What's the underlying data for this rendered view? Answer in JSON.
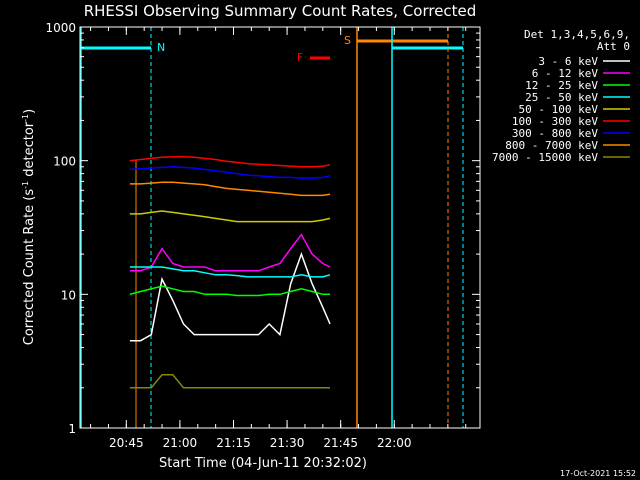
{
  "chart_data": {
    "type": "line",
    "title": "RHESSI Observing Summary Count Rates, Corrected",
    "xlabel": "Start Time (04-Jun-11 20:32:02)",
    "ylabel": "Corrected Count Rate (s",
    "ylabel_sup1": "-1",
    "ylabel_mid": " detector",
    "ylabel_sup2": "-1",
    "ylabel_end": ")",
    "yscale": "log",
    "ylim": [
      1,
      1000
    ],
    "xlim": [
      "20:32:02",
      "22:24"
    ],
    "x_ticks": [
      "20:45",
      "21:00",
      "21:15",
      "21:30",
      "21:45",
      "22:00"
    ],
    "y_ticks": [
      "1",
      "10",
      "100",
      "1000"
    ],
    "legend_header": [
      "Det 1,3,4,5,6,9,",
      "Att 0"
    ],
    "series": [
      {
        "name": "3 - 6 keV",
        "color": "#ffffff",
        "x": [
          "20:46",
          "20:49",
          "20:52",
          "20:55",
          "20:58",
          "21:01",
          "21:04",
          "21:07",
          "21:10",
          "21:13",
          "21:16",
          "21:19",
          "21:22",
          "21:25",
          "21:28",
          "21:31",
          "21:34",
          "21:37",
          "21:40",
          "21:42"
        ],
        "values": [
          4.5,
          4.5,
          5,
          13,
          9,
          6,
          5,
          5,
          5,
          5,
          5,
          5,
          5,
          6,
          5,
          12,
          20,
          12,
          8,
          6
        ]
      },
      {
        "name": "6 - 12 keV",
        "color": "#ff00ff",
        "x": [
          "20:46",
          "20:49",
          "20:52",
          "20:55",
          "20:58",
          "21:01",
          "21:04",
          "21:07",
          "21:10",
          "21:13",
          "21:16",
          "21:19",
          "21:22",
          "21:25",
          "21:28",
          "21:31",
          "21:34",
          "21:37",
          "21:40",
          "21:42"
        ],
        "values": [
          15,
          15,
          16,
          22,
          17,
          16,
          16,
          16,
          15,
          15,
          15,
          15,
          15,
          16,
          17,
          22,
          28,
          20,
          17,
          16
        ]
      },
      {
        "name": "12 - 25 keV",
        "color": "#00ff00",
        "x": [
          "20:46",
          "20:49",
          "20:52",
          "20:55",
          "20:58",
          "21:01",
          "21:04",
          "21:07",
          "21:10",
          "21:13",
          "21:16",
          "21:19",
          "21:22",
          "21:25",
          "21:28",
          "21:31",
          "21:34",
          "21:37",
          "21:40",
          "21:42"
        ],
        "values": [
          10,
          10.5,
          11,
          11.5,
          11,
          10.5,
          10.5,
          10,
          10,
          10,
          9.8,
          9.8,
          9.8,
          10,
          10,
          10.5,
          11,
          10.5,
          10,
          10
        ]
      },
      {
        "name": "25 - 50 keV",
        "color": "#00ffff",
        "x": [
          "20:46",
          "20:49",
          "20:52",
          "20:55",
          "20:58",
          "21:01",
          "21:04",
          "21:07",
          "21:10",
          "21:13",
          "21:16",
          "21:19",
          "21:22",
          "21:25",
          "21:28",
          "21:31",
          "21:34",
          "21:37",
          "21:40",
          "21:42"
        ],
        "values": [
          16,
          16,
          16,
          16,
          15.5,
          15,
          15,
          14.5,
          14,
          14,
          13.8,
          13.5,
          13.5,
          13.5,
          13.5,
          13.5,
          14,
          13.5,
          13.5,
          14
        ]
      },
      {
        "name": "50 - 100 keV",
        "color": "#cccc00",
        "x": [
          "20:46",
          "20:49",
          "20:52",
          "20:55",
          "20:58",
          "21:01",
          "21:04",
          "21:07",
          "21:10",
          "21:13",
          "21:16",
          "21:19",
          "21:22",
          "21:25",
          "21:28",
          "21:31",
          "21:34",
          "21:37",
          "21:40",
          "21:42"
        ],
        "values": [
          40,
          40,
          41,
          42,
          41,
          40,
          39,
          38,
          37,
          36,
          35,
          35,
          35,
          35,
          35,
          35,
          35,
          35,
          36,
          37
        ]
      },
      {
        "name": "100 - 300 keV",
        "color": "#ff0000",
        "x": [
          "20:46",
          "20:49",
          "20:52",
          "20:55",
          "20:58",
          "21:01",
          "21:04",
          "21:07",
          "21:10",
          "21:13",
          "21:16",
          "21:19",
          "21:22",
          "21:25",
          "21:28",
          "21:31",
          "21:34",
          "21:37",
          "21:40",
          "21:42"
        ],
        "values": [
          100,
          102,
          104,
          106,
          107,
          107,
          106,
          104,
          102,
          99,
          97,
          95,
          94,
          93,
          92,
          91,
          90,
          90,
          91,
          93
        ]
      },
      {
        "name": "300 - 800 keV",
        "color": "#0000ff",
        "x": [
          "20:46",
          "20:49",
          "20:52",
          "20:55",
          "20:58",
          "21:01",
          "21:04",
          "21:07",
          "21:10",
          "21:13",
          "21:16",
          "21:19",
          "21:22",
          "21:25",
          "21:28",
          "21:31",
          "21:34",
          "21:37",
          "21:40",
          "21:42"
        ],
        "values": [
          86,
          87,
          88,
          89,
          90,
          89,
          88,
          86,
          84,
          82,
          80,
          78,
          77,
          76,
          75,
          75,
          74,
          74,
          75,
          77
        ]
      },
      {
        "name": "800 - 7000 keV",
        "color": "#ff8800",
        "x": [
          "20:46",
          "20:49",
          "20:52",
          "20:55",
          "20:58",
          "21:01",
          "21:04",
          "21:07",
          "21:10",
          "21:13",
          "21:16",
          "21:19",
          "21:22",
          "21:25",
          "21:28",
          "21:31",
          "21:34",
          "21:37",
          "21:40",
          "21:42"
        ],
        "values": [
          67,
          67,
          68,
          69,
          69,
          68,
          67,
          66,
          64,
          62,
          61,
          60,
          59,
          58,
          57,
          56,
          55,
          55,
          55,
          56
        ]
      },
      {
        "name": "7000 - 15000 keV",
        "color": "#888800",
        "x": [
          "20:46",
          "20:49",
          "20:52",
          "20:55",
          "20:58",
          "21:01",
          "21:04",
          "21:07",
          "21:10",
          "21:13",
          "21:16",
          "21:19",
          "21:22",
          "21:25",
          "21:28",
          "21:31",
          "21:34",
          "21:37",
          "21:40",
          "21:42"
        ],
        "values": [
          2,
          2,
          2,
          2.5,
          2.5,
          2,
          2,
          2,
          2,
          2,
          2,
          2,
          2,
          2,
          2,
          2,
          2,
          2,
          2,
          2
        ]
      }
    ],
    "annotations": [
      {
        "text": "N",
        "color": "#00ffff"
      },
      {
        "text": "S",
        "color": "#ff8800"
      },
      {
        "text": "F",
        "color": "#ff0000"
      }
    ],
    "footer": "17-Oct-2021 15:52"
  }
}
